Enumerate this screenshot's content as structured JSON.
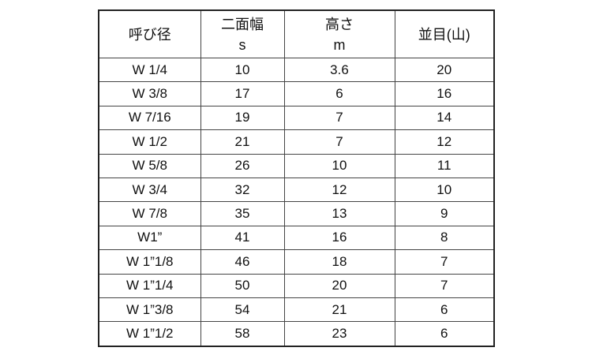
{
  "headers": [
    {
      "label": "呼び径",
      "sub": ""
    },
    {
      "label": "二面幅",
      "sub": "s"
    },
    {
      "label": "高さ",
      "sub": "m"
    },
    {
      "label": "並目(山)",
      "sub": ""
    }
  ],
  "rows": [
    [
      "W 1/4",
      "10",
      "3.6",
      "20"
    ],
    [
      "W 3/8",
      "17",
      "6",
      "16"
    ],
    [
      "W 7/16",
      "19",
      "7",
      "14"
    ],
    [
      "W 1/2",
      "21",
      "7",
      "12"
    ],
    [
      "W 5/8",
      "26",
      "10",
      "11"
    ],
    [
      "W 3/4",
      "32",
      "12",
      "10"
    ],
    [
      "W 7/8",
      "35",
      "13",
      "9"
    ],
    [
      "W1”",
      "41",
      "16",
      "8"
    ],
    [
      "W 1”1/8",
      "46",
      "18",
      "7"
    ],
    [
      "W 1”1/4",
      "50",
      "20",
      "7"
    ],
    [
      "W 1”3/8",
      "54",
      "21",
      "6"
    ],
    [
      "W 1”1/2",
      "58",
      "23",
      "6"
    ]
  ]
}
